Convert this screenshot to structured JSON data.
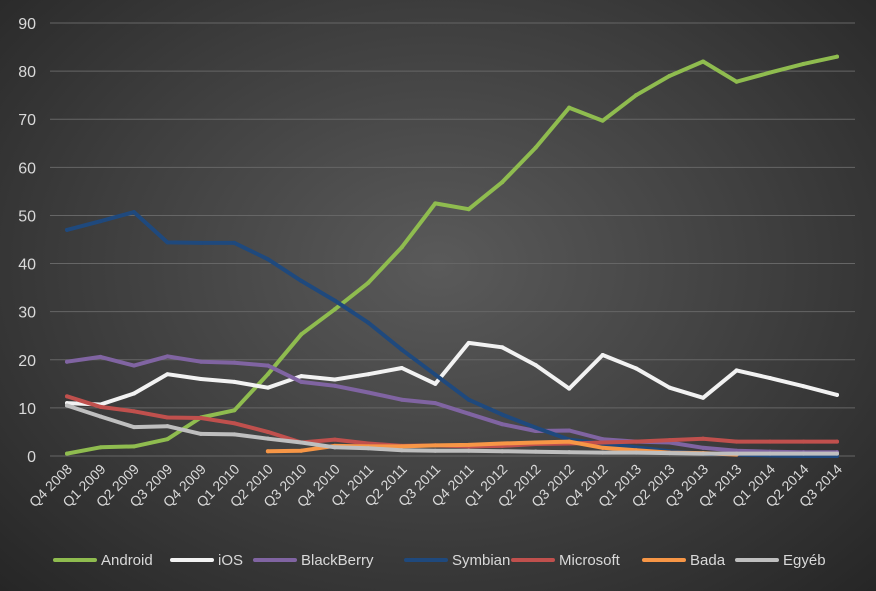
{
  "chart_data": {
    "type": "line",
    "title": "",
    "xlabel": "",
    "ylabel": "",
    "ylim": [
      0,
      90
    ],
    "y_ticks": [
      0,
      10,
      20,
      30,
      40,
      50,
      60,
      70,
      80,
      90
    ],
    "grid": true,
    "legend_position": "bottom",
    "categories": [
      "Q4 2008",
      "Q1 2009",
      "Q2 2009",
      "Q3 2009",
      "Q4 2009",
      "Q1 2010",
      "Q2 2010",
      "Q3 2010",
      "Q4 2010",
      "Q1 2011",
      "Q2 2011",
      "Q3 2011",
      "Q4 2011",
      "Q1 2012",
      "Q2 2012",
      "Q3 2012",
      "Q4 2012",
      "Q1 2013",
      "Q2 2013",
      "Q3 2013",
      "Q4 2013",
      "Q1 2014",
      "Q2 2014",
      "Q3 2014"
    ],
    "series": [
      {
        "name": "Android",
        "color": "#8fbc4f",
        "values": [
          0.5,
          1.8,
          2.0,
          3.5,
          8.0,
          9.5,
          17.0,
          25.3,
          30.5,
          36.0,
          43.4,
          52.5,
          51.3,
          56.9,
          64.1,
          72.4,
          69.7,
          75.0,
          79.0,
          82.0,
          77.8,
          79.7,
          81.5,
          83.0
        ]
      },
      {
        "name": "iOS",
        "color": "#f2f2f2",
        "values": [
          11.0,
          10.7,
          13.0,
          17.0,
          16.0,
          15.4,
          14.2,
          16.6,
          15.9,
          17.0,
          18.3,
          15.0,
          23.5,
          22.6,
          18.9,
          14.0,
          21.0,
          18.2,
          14.2,
          12.1,
          17.8,
          16.2,
          14.5,
          12.7
        ]
      },
      {
        "name": "BlackBerry",
        "color": "#8064a2",
        "values": [
          19.6,
          20.6,
          18.8,
          20.7,
          19.6,
          19.4,
          18.8,
          15.4,
          14.6,
          13.2,
          11.7,
          11.0,
          8.8,
          6.6,
          5.2,
          5.3,
          3.5,
          3.0,
          2.8,
          1.7,
          1.1,
          0.9,
          0.8,
          0.8
        ]
      },
      {
        "name": "Symbian",
        "color": "#1f497d",
        "values": [
          47.0,
          48.8,
          50.7,
          44.4,
          44.3,
          44.3,
          40.9,
          36.4,
          32.3,
          27.7,
          22.1,
          16.9,
          11.7,
          8.6,
          5.9,
          3.4,
          2.6,
          1.8,
          1.0,
          0.5,
          0.3,
          0.1,
          0.0,
          0.0
        ]
      },
      {
        "name": "Microsoft",
        "color": "#c0504d",
        "values": [
          12.4,
          10.2,
          9.3,
          8.0,
          7.9,
          6.8,
          5.0,
          2.8,
          3.4,
          2.6,
          2.1,
          2.2,
          2.0,
          2.1,
          2.5,
          2.6,
          2.8,
          3.0,
          3.3,
          3.6,
          3.0,
          3.0,
          3.0,
          3.0
        ]
      },
      {
        "name": "Bada",
        "color": "#f79646",
        "values": [
          null,
          null,
          null,
          null,
          null,
          null,
          1.0,
          1.1,
          2.1,
          2.0,
          2.0,
          2.2,
          2.3,
          2.6,
          2.8,
          3.0,
          1.7,
          1.2,
          0.7,
          0.6,
          0.3,
          null,
          null,
          null
        ]
      },
      {
        "name": "Egyéb",
        "color": "#bfbfbf",
        "values": [
          10.5,
          8.2,
          6.0,
          6.2,
          4.6,
          4.5,
          3.6,
          2.8,
          1.8,
          1.6,
          1.2,
          1.1,
          1.1,
          1.0,
          0.9,
          0.8,
          0.7,
          0.7,
          0.6,
          0.5,
          0.5,
          0.5,
          0.5,
          0.5
        ]
      }
    ]
  }
}
